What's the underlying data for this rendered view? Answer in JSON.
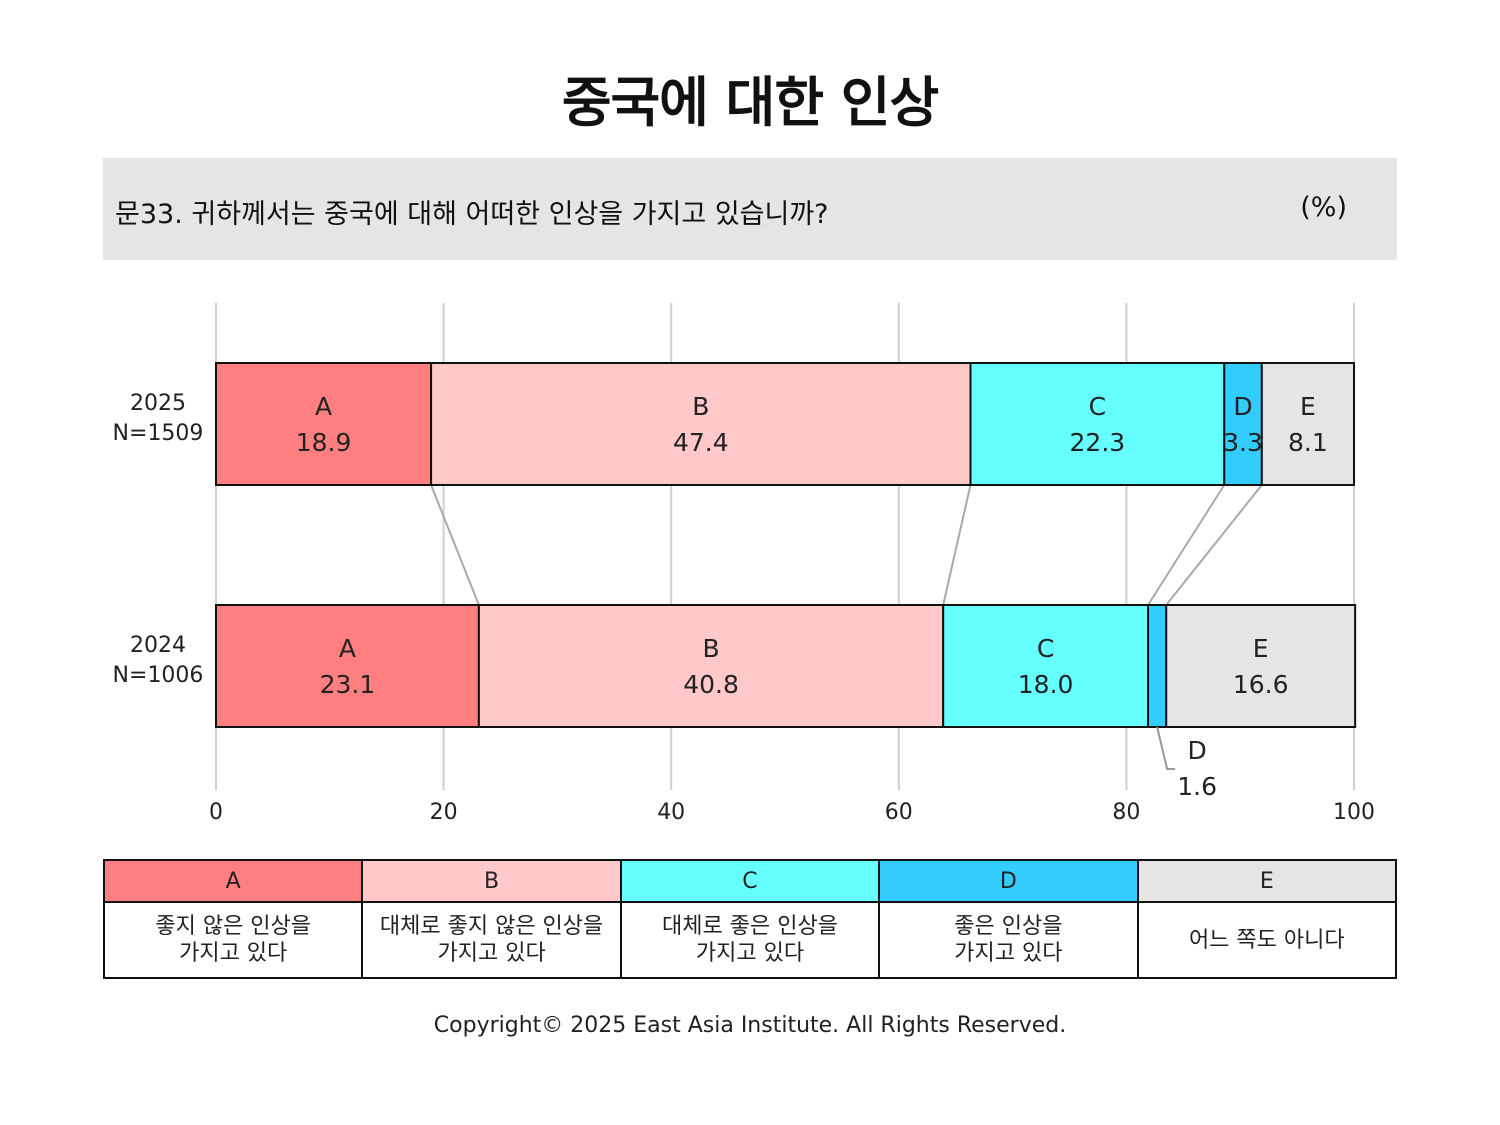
{
  "title": "중국에 대한 인상",
  "question": "문33. 귀하께서는 중국에 대해 어떠한 인상을 가지고 있습니까?",
  "unit": "(%)",
  "colors": {
    "A": "#ff7f80",
    "B": "#ffc9c9",
    "C": "#66ffff",
    "D": "#33ccff",
    "E": "#e6e5e6"
  },
  "chart_data": {
    "type": "bar",
    "orientation": "horizontal",
    "stacked": true,
    "xlim": [
      0,
      100
    ],
    "xticks": [
      0,
      20,
      40,
      60,
      80,
      100
    ],
    "grid": true,
    "categories": [
      "2025\nN=1509",
      "2024\nN=1006"
    ],
    "series": [
      {
        "name": "A",
        "values": [
          18.9,
          23.1
        ]
      },
      {
        "name": "B",
        "values": [
          47.4,
          40.8
        ]
      },
      {
        "name": "C",
        "values": [
          22.3,
          18.0
        ]
      },
      {
        "name": "D",
        "values": [
          3.3,
          1.6
        ]
      },
      {
        "name": "E",
        "values": [
          8.1,
          16.6
        ]
      }
    ]
  },
  "legend": [
    {
      "key": "A",
      "desc": "좋지 않은 인상을\n가지고 있다"
    },
    {
      "key": "B",
      "desc": "대체로 좋지 않은 인상을\n가지고 있다"
    },
    {
      "key": "C",
      "desc": "대체로 좋은 인상을\n가지고 있다"
    },
    {
      "key": "D",
      "desc": "좋은 인상을\n가지고 있다"
    },
    {
      "key": "E",
      "desc": "어느 쪽도 아니다"
    }
  ],
  "copyright": "Copyright© 2025 East Asia Institute. All Rights Reserved."
}
